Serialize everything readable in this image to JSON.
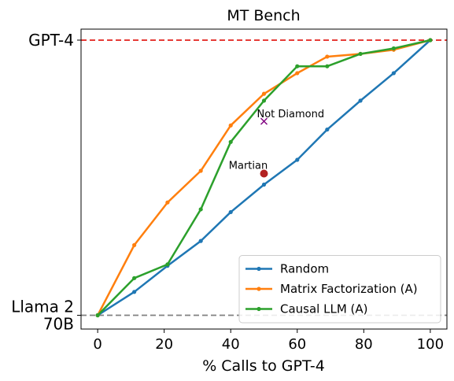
{
  "chart_data": {
    "type": "line",
    "title": "MT Bench",
    "xlabel": "% Calls to GPT-4",
    "ylabel": "",
    "xlim": [
      -5,
      105
    ],
    "ylim": [
      -0.05,
      1.04
    ],
    "x_ticks": [
      0,
      20,
      40,
      60,
      80,
      100
    ],
    "x_tick_labels": [
      "0",
      "20",
      "40",
      "60",
      "80",
      "100"
    ],
    "y_ticks": [
      {
        "value": 1,
        "label_lines": [
          "GPT-4"
        ]
      },
      {
        "value": 0,
        "label_lines": [
          "Llama 2",
          "70B"
        ]
      }
    ],
    "reference_lines": [
      {
        "y": 1,
        "color": "#e3211c",
        "style": "dashed"
      },
      {
        "y": 0,
        "color": "#808080",
        "style": "dashed"
      }
    ],
    "series": [
      {
        "name": "Random",
        "color": "#1f77b4",
        "x": [
          0,
          11,
          21,
          31,
          40,
          50,
          60,
          69,
          79,
          89,
          100
        ],
        "y": [
          0,
          0.085,
          0.18,
          0.27,
          0.375,
          0.475,
          0.565,
          0.675,
          0.78,
          0.88,
          1.0
        ]
      },
      {
        "name": "Matrix Factorization (A)",
        "color": "#ff7f0e",
        "x": [
          0,
          11,
          21,
          31,
          40,
          50,
          60,
          69,
          79,
          89,
          100
        ],
        "y": [
          0,
          0.255,
          0.41,
          0.525,
          0.69,
          0.805,
          0.88,
          0.94,
          0.95,
          0.965,
          1.0
        ]
      },
      {
        "name": "Causal LLM (A)",
        "color": "#2ca02c",
        "x": [
          0,
          11,
          21,
          31,
          40,
          50,
          60,
          69,
          79,
          89,
          100
        ],
        "y": [
          0,
          0.135,
          0.185,
          0.385,
          0.63,
          0.78,
          0.905,
          0.905,
          0.95,
          0.97,
          1.0
        ]
      }
    ],
    "annotations": [
      {
        "label": "Not Diamond",
        "x": 50,
        "y": 0.705,
        "marker": "x",
        "color": "#800080"
      },
      {
        "label": "Martian",
        "x": 50,
        "y": 0.515,
        "marker": "circle",
        "color": "#b22222"
      }
    ],
    "legend": {
      "placement": "lower-right"
    },
    "grid": false
  }
}
